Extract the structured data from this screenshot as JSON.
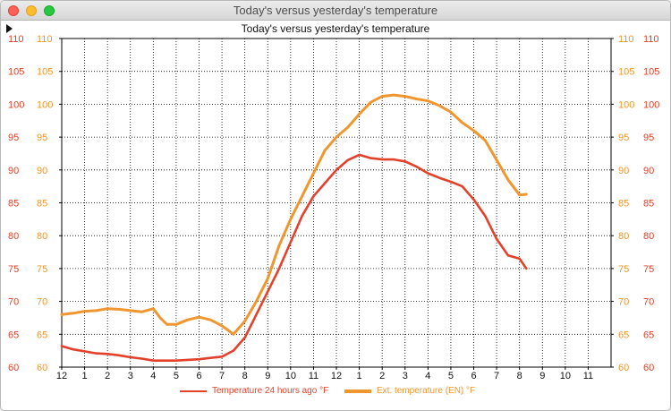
{
  "window": {
    "title": "Today's versus yesterday's temperature"
  },
  "colors": {
    "series_today": "#f0962e",
    "series_yesterday": "#e3412a",
    "axis_left_labels": "#e3412a",
    "axis_right_labels": "#f0962e"
  },
  "chart_data": {
    "type": "line",
    "title": "Today's versus yesterday's temperature",
    "ylim": [
      60,
      110
    ],
    "y_ticks": [
      60,
      65,
      70,
      75,
      80,
      85,
      90,
      95,
      100,
      105,
      110
    ],
    "x_hours_range": [
      0,
      24
    ],
    "x_tick_labels": [
      "12",
      "1",
      "2",
      "3",
      "4",
      "5",
      "6",
      "7",
      "8",
      "9",
      "10",
      "11",
      "12",
      "1",
      "2",
      "3",
      "4",
      "5",
      "6",
      "7",
      "8",
      "9",
      "10",
      "11"
    ],
    "grid": true,
    "legend_position": "bottom",
    "series": [
      {
        "name": "Temperature 24 hours ago °F",
        "color": "#e3412a",
        "x": [
          0,
          0.5,
          1,
          1.5,
          2,
          2.5,
          3,
          3.5,
          4,
          4.5,
          5,
          5.5,
          6,
          6.5,
          7,
          7.5,
          8,
          8.5,
          9,
          9.5,
          10,
          10.5,
          11,
          11.5,
          12,
          12.5,
          13,
          13.5,
          14,
          14.5,
          15,
          15.5,
          16,
          16.5,
          17,
          17.5,
          18,
          18.5,
          19,
          19.5,
          20,
          20.3
        ],
        "values": [
          63.2,
          62.7,
          62.4,
          62.1,
          62.0,
          61.8,
          61.5,
          61.3,
          61.0,
          61.0,
          61.0,
          61.1,
          61.2,
          61.4,
          61.6,
          62.5,
          64.5,
          68.0,
          71.5,
          75.0,
          79.0,
          83.0,
          86.0,
          88.0,
          90.0,
          91.5,
          92.3,
          91.8,
          91.6,
          91.6,
          91.3,
          90.5,
          89.5,
          88.8,
          88.2,
          87.5,
          85.5,
          83.0,
          79.5,
          77.0,
          76.5,
          75.0
        ]
      },
      {
        "name": "Ext. temperature (EN) °F",
        "color": "#f0962e",
        "x": [
          0,
          0.5,
          1,
          1.5,
          2,
          2.5,
          3,
          3.5,
          4,
          4.3,
          4.6,
          5,
          5.5,
          6,
          6.5,
          7,
          7.5,
          8,
          8.5,
          9,
          9.5,
          10,
          10.5,
          11,
          11.5,
          12,
          12.5,
          13,
          13.5,
          14,
          14.5,
          15,
          15.5,
          16,
          16.5,
          17,
          17.5,
          18,
          18.5,
          19,
          19.5,
          20,
          20.3
        ],
        "values": [
          68.0,
          68.2,
          68.5,
          68.6,
          68.9,
          68.8,
          68.6,
          68.4,
          68.9,
          67.5,
          66.5,
          66.5,
          67.2,
          67.6,
          67.2,
          66.3,
          65.0,
          67.0,
          70.0,
          73.5,
          78.5,
          82.5,
          86.0,
          89.5,
          93.0,
          95.0,
          96.5,
          98.5,
          100.3,
          101.2,
          101.4,
          101.2,
          100.8,
          100.5,
          99.8,
          98.8,
          97.2,
          96.0,
          94.5,
          91.5,
          88.5,
          86.2,
          86.3
        ]
      }
    ]
  },
  "legend": {
    "item_yesterday": "Temperature 24 hours ago °F",
    "item_today": "Ext. temperature (EN) °F"
  }
}
